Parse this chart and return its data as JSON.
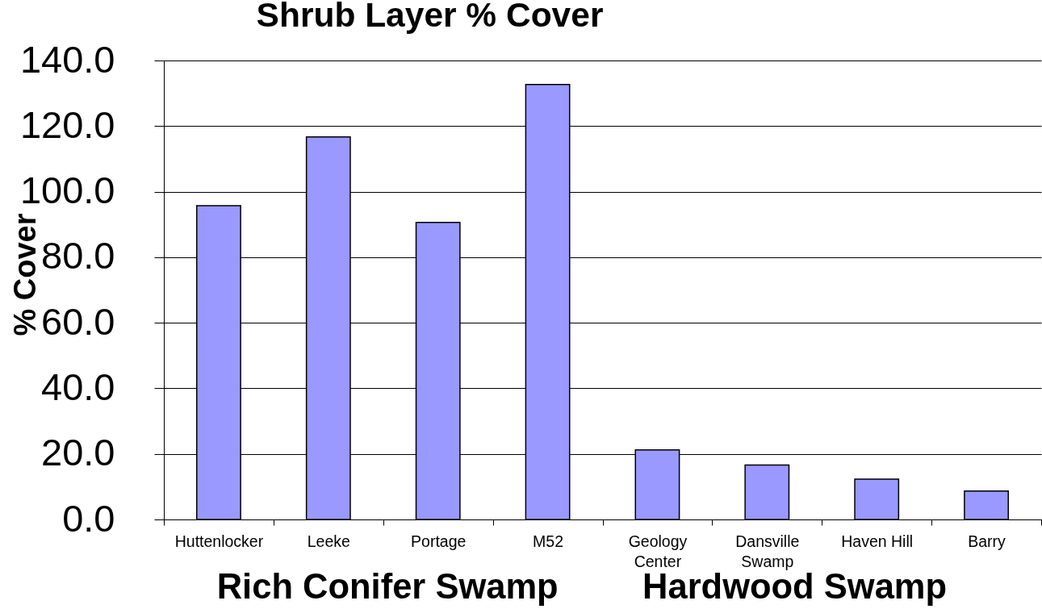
{
  "chart_data": {
    "type": "bar",
    "title": "Shrub Layer % Cover",
    "ylabel": "% Cover",
    "categories": [
      "Huttenlocker",
      "Leeke",
      "Portage",
      "M52",
      "Geology Center",
      "Dansville Swamp",
      "Haven Hill",
      "Barry"
    ],
    "values": [
      95.7,
      116.7,
      90.6,
      132.7,
      21.2,
      16.6,
      12.3,
      8.7
    ],
    "color": "#9999ff",
    "ylim": [
      0,
      140
    ],
    "yticks": [
      {
        "value": 0,
        "label": "0.0"
      },
      {
        "value": 20,
        "label": "20.0"
      },
      {
        "value": 40,
        "label": "40.0"
      },
      {
        "value": 60,
        "label": "60.0"
      },
      {
        "value": 80,
        "label": "80.0"
      },
      {
        "value": 100,
        "label": "100.0"
      },
      {
        "value": 120,
        "label": "120.0"
      },
      {
        "value": 140,
        "label": "140.0"
      }
    ],
    "grid": "y",
    "annotations": [
      "Rich Conifer Swamp",
      "Hardwood Swamp"
    ]
  }
}
